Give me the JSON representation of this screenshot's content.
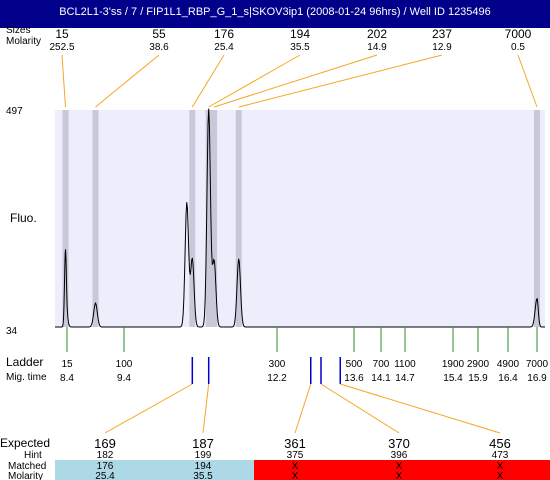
{
  "window": {
    "title": "BCL2L1-3'ss / 7 / FIP1L1_RBP_G_1_s|SKOV3ip1 (2008-01-24 96hrs) / Well ID 1235496"
  },
  "labels": {
    "sizes": "Sizes",
    "molarity": "Molarity",
    "fluo": "Fluo.",
    "ladder": "Ladder",
    "mig_time": "Mig. time",
    "expected": "Expected",
    "hint": "Hint",
    "matched": "Matched",
    "molarity_bottom": "Molarity"
  },
  "colors": {
    "title_bar": "#00008b",
    "plot_bg": "#ededfb",
    "peak_band": "#c8c8d8",
    "orange": "#f5a623",
    "green": "#2e8b2e",
    "blue": "#0000cc",
    "red_text": "#e8202a",
    "light_blue": "#add8e6",
    "red_bg": "#ff0000"
  },
  "chart_data": {
    "type": "line",
    "title": "BCL2L1-3'ss / 7 / FIP1L1_RBP_G_1_s|SKOV3ip1 (2008-01-24 96hrs) / Well ID 1235496",
    "ylabel": "Fluo.",
    "y_ticks": [
      "497",
      "34"
    ],
    "ylim": [
      34,
      497
    ],
    "top_peaks": [
      {
        "size": "15",
        "molarity": "252.5",
        "time": 8.35
      },
      {
        "size": "55",
        "molarity": "38.6",
        "time": 8.9
      },
      {
        "size": "176",
        "molarity": "25.4",
        "time": 10.65
      },
      {
        "size": "194",
        "molarity": "35.5",
        "time": 10.95
      },
      {
        "size": "202",
        "molarity": "14.9",
        "time": 11.05
      },
      {
        "size": "237",
        "molarity": "12.9",
        "time": 11.5
      },
      {
        "size": "7000",
        "molarity": "0.5",
        "time": 16.9
      }
    ],
    "ladder": [
      {
        "size": "15",
        "time": "8.4"
      },
      {
        "size": "100",
        "time": "9.4"
      },
      {
        "size": "300",
        "time": "12.2"
      },
      {
        "size": "500",
        "time": "13.6"
      },
      {
        "size": "700",
        "time": "14.1"
      },
      {
        "size": "1100",
        "time": "14.7"
      },
      {
        "size": "1900",
        "time": "15.4"
      },
      {
        "size": "2900",
        "time": "15.9"
      },
      {
        "size": "4900",
        "time": "16.4"
      },
      {
        "size": "7000",
        "time": "16.9"
      }
    ],
    "trace_peaks": [
      {
        "time": 8.35,
        "height": 200
      },
      {
        "time": 8.9,
        "height": 85
      },
      {
        "time": 10.55,
        "height": 300
      },
      {
        "time": 10.65,
        "height": 180
      },
      {
        "time": 10.95,
        "height": 500
      },
      {
        "time": 11.05,
        "height": 175
      },
      {
        "time": 11.5,
        "height": 180
      },
      {
        "time": 16.9,
        "height": 95
      }
    ],
    "expected": [
      {
        "expected": "169",
        "hint": "182",
        "matched": "176",
        "molarity": "25.4",
        "match": true,
        "mark_time": 10.65
      },
      {
        "expected": "187",
        "hint": "199",
        "matched": "194",
        "molarity": "35.5",
        "match": true,
        "mark_time": 10.95
      },
      {
        "expected": "361",
        "hint": "375",
        "matched": "X",
        "molarity": "X",
        "match": false,
        "mark_time": 12.85
      },
      {
        "expected": "370",
        "hint": "396",
        "matched": "X",
        "molarity": "X",
        "match": false,
        "mark_time": 13.0
      },
      {
        "expected": "456",
        "hint": "473",
        "matched": "X",
        "molarity": "X",
        "match": false,
        "mark_time": 13.35
      }
    ]
  }
}
